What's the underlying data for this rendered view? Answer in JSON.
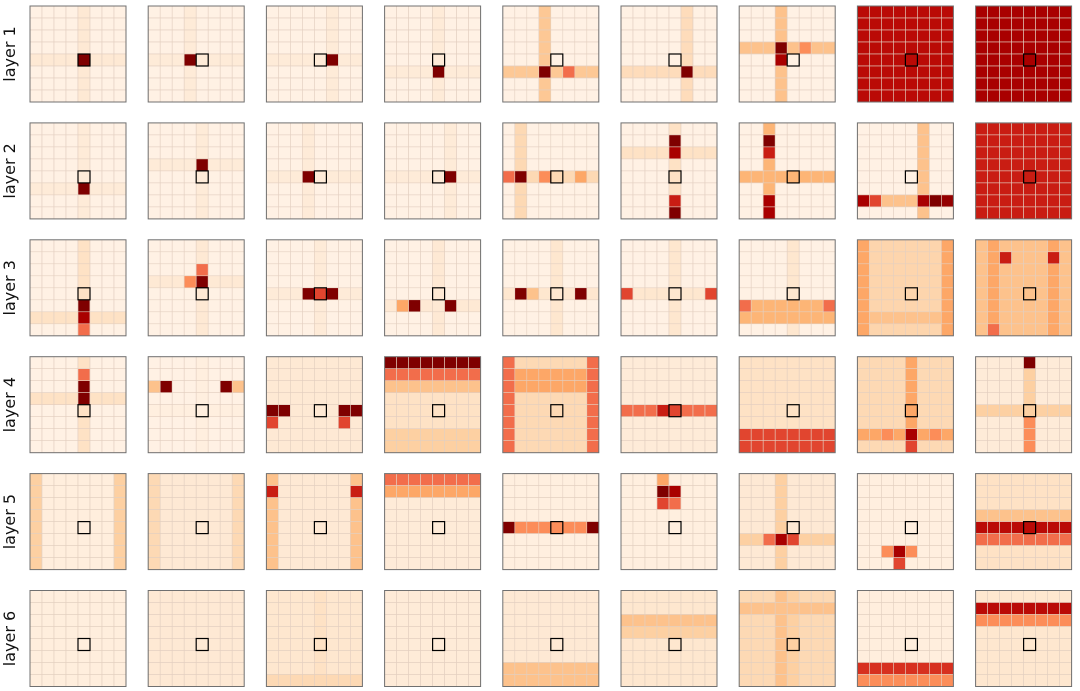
{
  "chart_data": {
    "type": "heatmap",
    "rows": 6,
    "cols": 9,
    "grid": [
      8,
      8
    ],
    "query_cell": [
      4,
      4
    ],
    "colormap": [
      "#fff5eb",
      "#fee6ce",
      "#fdd0a2",
      "#fdae6b",
      "#fc8d59",
      "#ef6548",
      "#d7301f",
      "#b30000",
      "#7f0000"
    ],
    "row_labels": [
      "layer 1",
      "layer 2",
      "layer 3",
      "layer 4",
      "layer 5",
      "layer 6"
    ],
    "panels": [
      [
        {
          "cross": [
            4,
            4,
            0.1
          ],
          "peaks": [
            [
              4,
              4,
              1.0
            ]
          ]
        },
        {
          "cross": [
            4,
            3,
            0.08
          ],
          "peaks": [
            [
              4,
              3,
              1.0
            ]
          ]
        },
        {
          "cross": [
            4,
            5,
            0.08
          ],
          "peaks": [
            [
              4,
              5,
              1.0
            ]
          ]
        },
        {
          "cross": [
            5,
            4,
            0.08
          ],
          "peaks": [
            [
              5,
              4,
              1.0
            ]
          ]
        },
        {
          "cross": [
            5,
            3,
            0.28
          ],
          "peaks": [
            [
              5,
              3,
              1.0
            ],
            [
              5,
              5,
              0.6
            ]
          ]
        },
        {
          "cross": [
            5,
            5,
            0.18
          ],
          "peaks": [
            [
              5,
              5,
              1.0
            ]
          ]
        },
        {
          "cross": [
            3,
            3,
            0.3
          ],
          "peaks": [
            [
              3,
              3,
              1.0
            ],
            [
              4,
              3,
              0.9
            ],
            [
              3,
              5,
              0.5
            ]
          ]
        },
        {
          "fill": 0.85,
          "band_rows": [
            [
              4,
              0.05
            ],
            [
              1,
              0.35
            ]
          ],
          "band_cols": [
            [
              4,
              0.12
            ],
            [
              2,
              0.45
            ]
          ]
        },
        {
          "fill": 0.9,
          "band_rows": [
            [
              4,
              0.05
            ],
            [
              1,
              0.4
            ]
          ],
          "band_cols": [
            [
              4,
              0.1
            ],
            [
              2,
              0.5
            ]
          ]
        }
      ],
      [
        {
          "cross": [
            5,
            4,
            0.08
          ],
          "peaks": [
            [
              5,
              4,
              1.0
            ]
          ]
        },
        {
          "cross": [
            3,
            4,
            0.08
          ],
          "peaks": [
            [
              3,
              4,
              1.0
            ]
          ]
        },
        {
          "cross": [
            4,
            3,
            0.08
          ],
          "peaks": [
            [
              4,
              3,
              1.0
            ]
          ]
        },
        {
          "cross": [
            4,
            5,
            0.08
          ],
          "peaks": [
            [
              4,
              5,
              1.0
            ]
          ]
        },
        {
          "cross": [
            4,
            1,
            0.2
          ],
          "peaks": [
            [
              4,
              1,
              1.0
            ],
            [
              4,
              0,
              0.6
            ],
            [
              4,
              3,
              0.5
            ],
            [
              4,
              6,
              0.4
            ]
          ]
        },
        {
          "cross": [
            2,
            4,
            0.15
          ],
          "peaks": [
            [
              1,
              4,
              1.0
            ],
            [
              2,
              4,
              0.9
            ],
            [
              6,
              4,
              0.8
            ],
            [
              7,
              4,
              1.0
            ]
          ]
        },
        {
          "cross": [
            4,
            2,
            0.35
          ],
          "peaks": [
            [
              1,
              2,
              1.0
            ],
            [
              2,
              2,
              0.8
            ],
            [
              6,
              2,
              0.9
            ],
            [
              7,
              2,
              0.9
            ]
          ]
        },
        {
          "cross": [
            6,
            5,
            0.3
          ],
          "peaks": [
            [
              6,
              0,
              0.9
            ],
            [
              6,
              1,
              0.7
            ],
            [
              6,
              5,
              0.9
            ],
            [
              6,
              6,
              1.0
            ],
            [
              6,
              7,
              0.95
            ]
          ]
        },
        {
          "fill": 0.8,
          "band_rows": [
            [
              4,
              0.08
            ],
            [
              3,
              0.3
            ]
          ],
          "band_cols": [
            [
              4,
              0.1
            ],
            [
              3,
              0.35
            ]
          ]
        }
      ],
      [
        {
          "cross": [
            6,
            4,
            0.15
          ],
          "peaks": [
            [
              5,
              4,
              1.0
            ],
            [
              6,
              4,
              0.9
            ],
            [
              7,
              4,
              0.6
            ]
          ]
        },
        {
          "cross": [
            3,
            4,
            0.1
          ],
          "peaks": [
            [
              3,
              4,
              1.0
            ],
            [
              3,
              3,
              0.5
            ],
            [
              2,
              4,
              0.6
            ]
          ]
        },
        {
          "cross": [
            4,
            4,
            0.08
          ],
          "peaks": [
            [
              4,
              3,
              1.0
            ],
            [
              4,
              5,
              1.0
            ],
            [
              4,
              4,
              0.7
            ]
          ]
        },
        {
          "cross": [
            5,
            4,
            0.1
          ],
          "peaks": [
            [
              5,
              2,
              1.0
            ],
            [
              5,
              5,
              1.0
            ],
            [
              5,
              1,
              0.4
            ]
          ]
        },
        {
          "cross": [
            4,
            4,
            0.12
          ],
          "peaks": [
            [
              4,
              1,
              1.0
            ],
            [
              4,
              6,
              1.0
            ],
            [
              4,
              2,
              0.3
            ]
          ]
        },
        {
          "cross": [
            4,
            4,
            0.12
          ],
          "peaks": [
            [
              4,
              0,
              0.7
            ],
            [
              4,
              7,
              0.7
            ]
          ]
        },
        {
          "cross": [
            5,
            4,
            0.12
          ],
          "peaks": [
            [
              5,
              0,
              0.6
            ],
            [
              5,
              7,
              0.6
            ]
          ],
          "band_rows": [
            [
              6,
              0.35
            ],
            [
              5,
              0.35
            ]
          ]
        },
        {
          "fill": 0.22,
          "band_rows": [
            [
              6,
              0.3
            ]
          ],
          "band_cols": [
            [
              0,
              0.4
            ],
            [
              7,
              0.4
            ]
          ]
        },
        {
          "fill": 0.3,
          "peaks": [
            [
              1,
              2,
              0.8
            ],
            [
              1,
              6,
              0.8
            ],
            [
              7,
              1,
              0.6
            ]
          ],
          "band_cols": [
            [
              1,
              0.4
            ],
            [
              2,
              0.3
            ],
            [
              6,
              0.4
            ],
            [
              7,
              0.3
            ]
          ]
        }
      ],
      [
        {
          "cross": [
            3,
            4,
            0.15
          ],
          "peaks": [
            [
              2,
              4,
              1.0
            ],
            [
              3,
              4,
              1.0
            ],
            [
              1,
              4,
              0.6
            ]
          ]
        },
        {
          "cross": [
            4,
            4,
            0.05
          ],
          "peaks": [
            [
              2,
              1,
              1.0
            ],
            [
              2,
              6,
              1.0
            ],
            [
              2,
              0,
              0.3
            ],
            [
              2,
              7,
              0.3
            ]
          ]
        },
        {
          "fill": 0.1,
          "peaks": [
            [
              4,
              0,
              1.0
            ],
            [
              4,
              1,
              1.0
            ],
            [
              4,
              6,
              1.0
            ],
            [
              4,
              7,
              1.0
            ],
            [
              5,
              0,
              0.7
            ],
            [
              5,
              6,
              0.7
            ]
          ]
        },
        {
          "fill": 0.15,
          "band_rows": [
            [
              0,
              1.0
            ],
            [
              1,
              0.6
            ],
            [
              2,
              0.3
            ],
            [
              6,
              0.25
            ],
            [
              7,
              0.25
            ]
          ]
        },
        {
          "fill": 0.2,
          "band_rows": [
            [
              1,
              0.4
            ],
            [
              2,
              0.4
            ]
          ],
          "band_cols": [
            [
              0,
              0.6
            ],
            [
              7,
              0.6
            ]
          ]
        },
        {
          "fill": 0.08,
          "band_rows": [
            [
              4,
              0.6
            ]
          ],
          "peaks": [
            [
              4,
              3,
              0.8
            ],
            [
              4,
              4,
              0.7
            ]
          ]
        },
        {
          "fill": 0.15,
          "band_rows": [
            [
              6,
              0.7
            ],
            [
              7,
              0.7
            ]
          ]
        },
        {
          "fill": 0.2,
          "cross": [
            6,
            4,
            0.4
          ],
          "peaks": [
            [
              6,
              4,
              0.9
            ],
            [
              7,
              4,
              0.7
            ],
            [
              6,
              2,
              0.5
            ],
            [
              6,
              6,
              0.5
            ]
          ]
        },
        {
          "fill": 0.08,
          "cross": [
            4,
            4,
            0.25
          ],
          "peaks": [
            [
              0,
              4,
              1.0
            ],
            [
              5,
              4,
              0.5
            ],
            [
              6,
              4,
              0.5
            ],
            [
              7,
              4,
              0.5
            ]
          ]
        }
      ],
      [
        {
          "fill": 0.06,
          "band_cols": [
            [
              0,
              0.25
            ],
            [
              7,
              0.25
            ]
          ]
        },
        {
          "fill": 0.1,
          "band_cols": [
            [
              0,
              0.2
            ],
            [
              7,
              0.2
            ]
          ]
        },
        {
          "fill": 0.1,
          "band_cols": [
            [
              0,
              0.3
            ],
            [
              7,
              0.3
            ]
          ],
          "peaks": [
            [
              1,
              0,
              0.8
            ],
            [
              1,
              7,
              0.8
            ]
          ]
        },
        {
          "fill": 0.08,
          "band_rows": [
            [
              0,
              0.6
            ],
            [
              1,
              0.4
            ]
          ]
        },
        {
          "fill": 0.05,
          "band_rows": [
            [
              4,
              0.5
            ]
          ],
          "peaks": [
            [
              4,
              0,
              1.0
            ],
            [
              4,
              7,
              1.0
            ]
          ]
        },
        {
          "fill": 0.05,
          "peaks": [
            [
              1,
              3,
              1.0
            ],
            [
              1,
              4,
              0.9
            ],
            [
              2,
              3,
              0.7
            ],
            [
              2,
              4,
              0.6
            ],
            [
              0,
              3,
              0.4
            ]
          ]
        },
        {
          "fill": 0.1,
          "cross": [
            5,
            3,
            0.25
          ],
          "peaks": [
            [
              5,
              3,
              0.9
            ],
            [
              5,
              4,
              0.7
            ],
            [
              5,
              2,
              0.6
            ]
          ]
        },
        {
          "fill": 0.05,
          "peaks": [
            [
              6,
              3,
              0.9
            ],
            [
              7,
              3,
              0.7
            ],
            [
              6,
              2,
              0.5
            ],
            [
              6,
              4,
              0.5
            ]
          ]
        },
        {
          "fill": 0.15,
          "band_rows": [
            [
              4,
              0.85
            ],
            [
              5,
              0.6
            ],
            [
              3,
              0.3
            ]
          ]
        }
      ],
      [
        {
          "fill": 0.06
        },
        {
          "fill": 0.1
        },
        {
          "fill": 0.12,
          "band_rows": [
            [
              7,
              0.2
            ]
          ],
          "band_cols": [
            [
              4,
              0.15
            ]
          ]
        },
        {
          "fill": 0.08
        },
        {
          "fill": 0.1,
          "band_rows": [
            [
              6,
              0.3
            ],
            [
              7,
              0.3
            ]
          ]
        },
        {
          "fill": 0.12,
          "band_rows": [
            [
              2,
              0.3
            ],
            [
              3,
              0.25
            ]
          ]
        },
        {
          "fill": 0.2,
          "band_cols": [
            [
              3,
              0.3
            ],
            [
              4,
              0.25
            ]
          ],
          "band_rows": [
            [
              1,
              0.3
            ]
          ]
        },
        {
          "fill": 0.06,
          "band_rows": [
            [
              6,
              0.75
            ],
            [
              7,
              0.5
            ]
          ]
        },
        {
          "fill": 0.12,
          "band_rows": [
            [
              1,
              0.85
            ],
            [
              2,
              0.5
            ]
          ]
        }
      ]
    ]
  }
}
